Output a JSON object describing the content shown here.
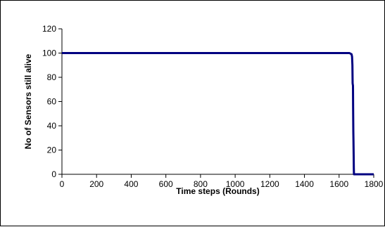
{
  "chart_data": {
    "type": "line",
    "title": "",
    "xlabel": "Time steps (Rounds)",
    "ylabel": "No of Sensors still alive",
    "xlim": [
      0,
      1800
    ],
    "ylim": [
      0,
      120
    ],
    "xticks": [
      0,
      200,
      400,
      600,
      800,
      1000,
      1200,
      1400,
      1600,
      1800
    ],
    "yticks": [
      0,
      20,
      40,
      60,
      80,
      100,
      120
    ],
    "grid": false,
    "legend": "none",
    "series": [
      {
        "color": "#000080",
        "x": [
          0,
          1500,
          1660,
          1672,
          1675,
          1677,
          1678,
          1680,
          1681,
          1682,
          1683,
          1684,
          1685,
          1686,
          1800
        ],
        "y": [
          100,
          100,
          100,
          99,
          97,
          90,
          75,
          73,
          55,
          35,
          28,
          15,
          5,
          0,
          0
        ]
      }
    ]
  }
}
